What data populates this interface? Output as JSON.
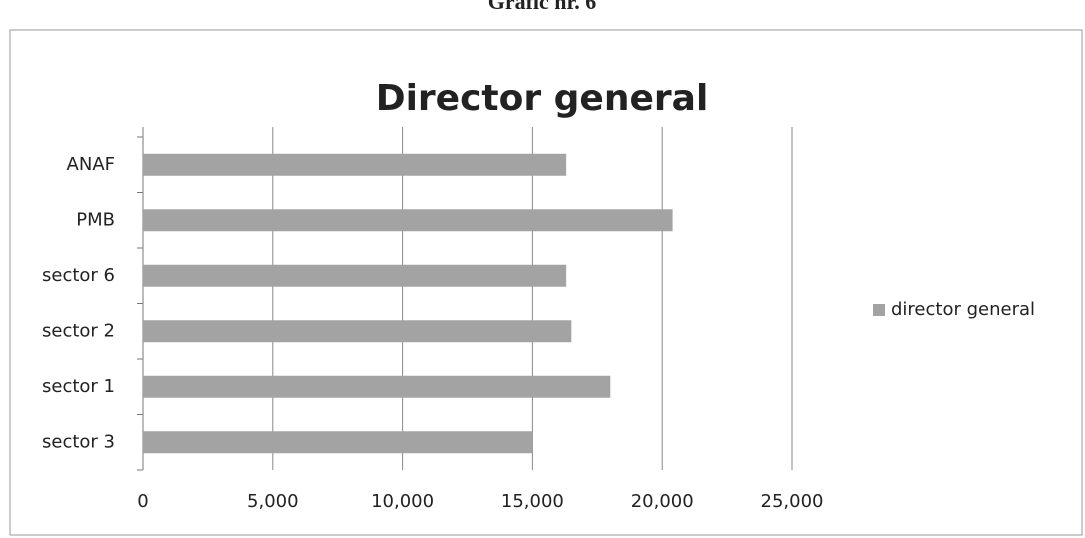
{
  "heading": "Grafic nr. 6",
  "chart_data": {
    "type": "barh",
    "title": "Director general",
    "categories": [
      "ANAF",
      "PMB",
      "sector 6",
      "sector 2",
      "sector 1",
      "sector 3"
    ],
    "series": [
      {
        "name": "director general",
        "color": "#a3a3a3",
        "values": [
          16300,
          20400,
          16300,
          16500,
          18000,
          15000
        ]
      }
    ],
    "xlim": [
      0,
      25000
    ],
    "xticks": [
      0,
      {
        "value": 5000,
        "label": "5,000"
      },
      {
        "value": 10000,
        "label": "10,000"
      },
      {
        "value": 15000,
        "label": "15,000"
      },
      {
        "value": 20000,
        "label": "20,000"
      },
      {
        "value": 25000,
        "label": "25,000"
      }
    ],
    "grid": true,
    "legend": "right"
  }
}
